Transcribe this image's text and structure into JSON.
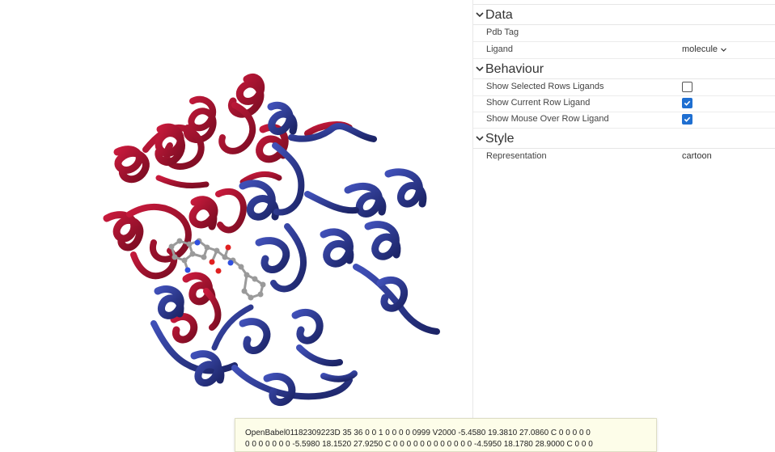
{
  "sections": {
    "data": {
      "title": "Data"
    },
    "behaviour": {
      "title": "Behaviour"
    },
    "style": {
      "title": "Style"
    }
  },
  "data_rows": {
    "pdb_tag": {
      "label": "Pdb Tag",
      "value": ""
    },
    "ligand": {
      "label": "Ligand",
      "value": "molecule"
    }
  },
  "behaviour_rows": {
    "show_selected": {
      "label": "Show Selected Rows Ligands",
      "checked": false
    },
    "show_current": {
      "label": "Show Current Row Ligand",
      "checked": true
    },
    "show_mouse_over": {
      "label": "Show Mouse Over Row Ligand",
      "checked": true
    }
  },
  "style_rows": {
    "representation": {
      "label": "Representation",
      "value": "cartoon"
    }
  },
  "tooltip": {
    "line1": "OpenBabel01182309223D 35 36 0 0 1 0 0 0 0 0999 V2000 -5.4580 19.3810 27.0860 C 0 0 0 0 0",
    "line2": "0 0 0 0 0 0 0 -5.5980 18.1520 27.9250 C 0 0 0 0 0 0 0 0 0 0 0 0 -4.5950 18.1780 28.9000 C 0 0 0"
  },
  "colors": {
    "chain_a": "#b01234",
    "chain_b": "#2e3a94",
    "checkbox_on": "#1f6fd1",
    "ligand_carbon": "#9a9a9a",
    "ligand_nitrogen": "#3050e0",
    "ligand_oxygen": "#e02020"
  },
  "icons": {
    "section_toggle": "chevron-down-icon",
    "dropdown": "chevron-down-icon",
    "check": "check-icon"
  }
}
